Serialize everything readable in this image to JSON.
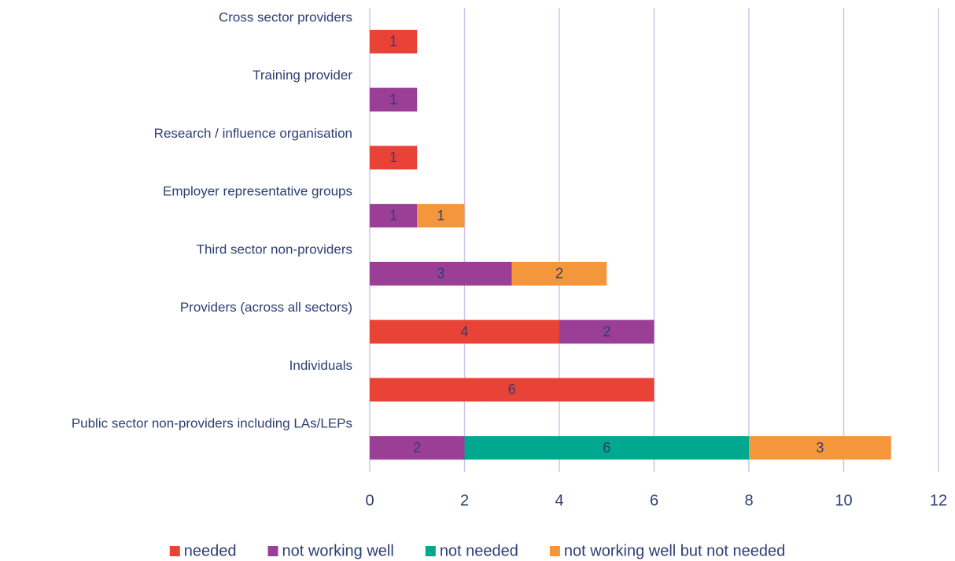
{
  "chart_data": {
    "type": "bar",
    "orientation": "horizontal",
    "stacked": true,
    "categories": [
      "Cross sector providers",
      "Training provider",
      "Research / influence organisation",
      "Employer representative groups",
      "Third sector non-providers",
      "Providers (across all sectors)",
      "Individuals",
      "Public sector non-providers including LAs/LEPs"
    ],
    "series": [
      {
        "name": "needed",
        "color": "#e84336",
        "values": [
          1,
          null,
          1,
          null,
          null,
          4,
          6,
          null
        ]
      },
      {
        "name": "not working well",
        "color": "#9b3f96",
        "values": [
          null,
          1,
          null,
          1,
          3,
          2,
          null,
          2
        ]
      },
      {
        "name": "not needed",
        "color": "#00a88f",
        "values": [
          null,
          null,
          null,
          null,
          null,
          null,
          null,
          6
        ]
      },
      {
        "name": "not working well but not needed",
        "color": "#f4963c",
        "values": [
          null,
          null,
          null,
          1,
          2,
          null,
          null,
          3
        ]
      }
    ],
    "xlim": [
      0,
      12
    ],
    "xticks": [
      0,
      2,
      4,
      6,
      8,
      10,
      12
    ],
    "grid": true,
    "legend": "bottom"
  }
}
